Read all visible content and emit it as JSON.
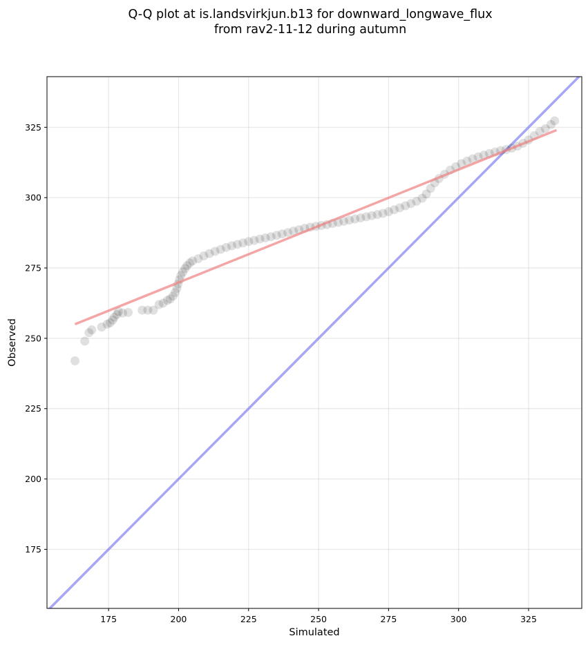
{
  "chart_data": {
    "type": "scatter",
    "title": [
      "Q-Q plot at is.landsvirkjun.b13 for downward_longwave_flux",
      "from rav2-11-12 during autumn"
    ],
    "xlabel": "Simulated",
    "ylabel": "Observed",
    "xlim": [
      153,
      344
    ],
    "ylim": [
      154,
      343
    ],
    "xticks": [
      175,
      200,
      225,
      250,
      275,
      300,
      325
    ],
    "yticks": [
      175,
      200,
      225,
      250,
      275,
      300,
      325
    ],
    "grid": true,
    "series": [
      {
        "name": "quantiles",
        "color": "#000000",
        "opacity": 0.12,
        "points": [
          [
            163,
            242
          ],
          [
            166.5,
            249
          ],
          [
            168,
            252
          ],
          [
            169,
            253
          ],
          [
            172.5,
            254
          ],
          [
            174.5,
            255
          ],
          [
            175.5,
            255.5
          ],
          [
            176.5,
            256.5
          ],
          [
            177,
            257.5
          ],
          [
            178,
            258.5
          ],
          [
            178.5,
            259.5
          ],
          [
            180,
            259
          ],
          [
            182,
            259.2
          ],
          [
            187,
            260
          ],
          [
            189,
            260
          ],
          [
            191,
            260
          ],
          [
            193,
            262
          ],
          [
            194.5,
            262.5
          ],
          [
            196,
            263.5
          ],
          [
            197,
            264
          ],
          [
            198,
            265
          ],
          [
            198.8,
            266.3
          ],
          [
            199.4,
            267.8
          ],
          [
            199.8,
            269.3
          ],
          [
            200.3,
            270.8
          ],
          [
            200.8,
            272.3
          ],
          [
            201.5,
            273.5
          ],
          [
            202.3,
            274.8
          ],
          [
            203,
            275.8
          ],
          [
            204,
            276.8
          ],
          [
            205,
            277.5
          ],
          [
            207,
            278.3
          ],
          [
            209,
            279.3
          ],
          [
            211,
            280.1
          ],
          [
            213,
            280.9
          ],
          [
            215,
            281.6
          ],
          [
            217,
            282.3
          ],
          [
            219,
            282.9
          ],
          [
            221,
            283.4
          ],
          [
            223,
            283.9
          ],
          [
            225,
            284.4
          ],
          [
            227,
            284.8
          ],
          [
            229,
            285.3
          ],
          [
            231,
            285.7
          ],
          [
            233,
            286.1
          ],
          [
            235,
            286.6
          ],
          [
            237,
            287.1
          ],
          [
            239,
            287.6
          ],
          [
            241,
            288.1
          ],
          [
            243,
            288.6
          ],
          [
            245,
            289.1
          ],
          [
            247,
            289.5
          ],
          [
            249,
            289.8
          ],
          [
            251,
            290.1
          ],
          [
            253,
            290.4
          ],
          [
            255,
            290.8
          ],
          [
            257,
            291.2
          ],
          [
            259,
            291.6
          ],
          [
            261,
            292
          ],
          [
            263,
            292.4
          ],
          [
            265,
            292.8
          ],
          [
            267,
            293.2
          ],
          [
            269,
            293.6
          ],
          [
            271,
            294
          ],
          [
            273,
            294.4
          ],
          [
            275,
            295
          ],
          [
            277,
            295.7
          ],
          [
            279,
            296.4
          ],
          [
            281,
            297.1
          ],
          [
            283,
            297.9
          ],
          [
            285,
            298.7
          ],
          [
            287,
            299.8
          ],
          [
            288.5,
            301.3
          ],
          [
            290,
            303.3
          ],
          [
            291.5,
            305.3
          ],
          [
            293,
            306.8
          ],
          [
            295,
            308.3
          ],
          [
            297,
            309.8
          ],
          [
            299,
            311
          ],
          [
            301,
            312.1
          ],
          [
            303,
            313
          ],
          [
            305,
            313.8
          ],
          [
            307,
            314.5
          ],
          [
            309,
            315.1
          ],
          [
            311,
            315.7
          ],
          [
            313,
            316.2
          ],
          [
            315,
            316.7
          ],
          [
            317,
            317.1
          ],
          [
            319,
            317.6
          ],
          [
            321,
            318.3
          ],
          [
            323,
            319.3
          ],
          [
            325,
            320.5
          ],
          [
            327,
            322
          ],
          [
            329,
            323.5
          ],
          [
            331,
            324.5
          ],
          [
            333,
            326
          ],
          [
            334.3,
            327.3
          ]
        ]
      }
    ],
    "lines": [
      {
        "name": "regression-fit",
        "color": "#f08080",
        "opacity": 0.7,
        "from": [
          163,
          255
        ],
        "to": [
          335,
          324
        ]
      },
      {
        "name": "one-to-one",
        "color": "#8080f0",
        "opacity": 0.7,
        "from": [
          153,
          153
        ],
        "to": [
          344,
          344
        ]
      }
    ]
  }
}
